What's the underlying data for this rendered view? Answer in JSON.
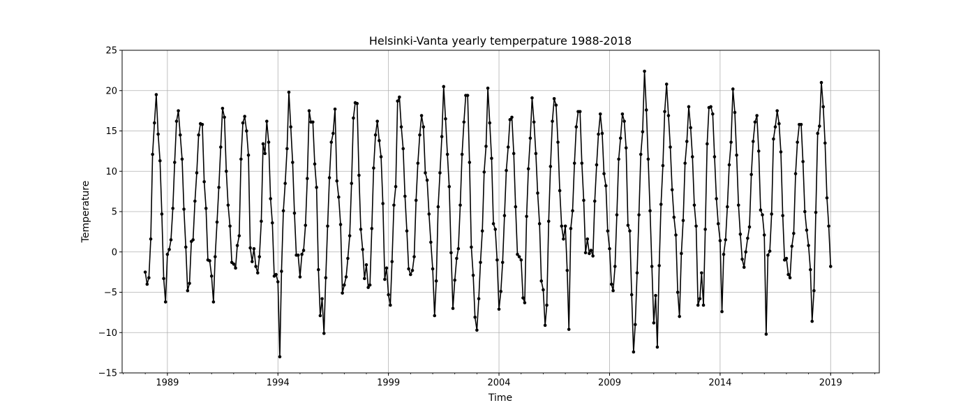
{
  "chart_data": {
    "type": "line",
    "title": "Helsinki-Vanta yearly temperpature 1988-2018",
    "xlabel": "Time",
    "ylabel": "Temperature",
    "xlim": [
      "1986-12-15",
      "2021-03-15"
    ],
    "ylim": [
      -15,
      25
    ],
    "x_ticks": [
      "1989",
      "1994",
      "1999",
      "2004",
      "2009",
      "2014",
      "2019"
    ],
    "y_ticks": [
      "−15",
      "−10",
      "−5",
      "0",
      "5",
      "10",
      "15",
      "20",
      "25"
    ],
    "grid": true,
    "legend": null,
    "color": "#000000",
    "marker": "circle",
    "x_start": "1988-01",
    "x_step": "month",
    "values": [
      -2.5,
      -4.0,
      -3.2,
      1.6,
      12.1,
      16.0,
      19.5,
      14.6,
      11.3,
      4.7,
      -3.3,
      -6.2,
      -0.3,
      0.3,
      1.5,
      5.4,
      11.1,
      16.2,
      17.5,
      14.5,
      11.5,
      5.3,
      0.6,
      -4.8,
      -3.9,
      1.3,
      1.5,
      6.3,
      9.8,
      14.5,
      15.9,
      15.8,
      8.7,
      5.4,
      -1.0,
      -1.1,
      -3.0,
      -6.2,
      -0.6,
      3.7,
      8.0,
      13.0,
      17.8,
      16.7,
      10.0,
      5.8,
      3.2,
      -1.3,
      -1.5,
      -2.0,
      0.8,
      2.0,
      11.5,
      16.0,
      16.8,
      15.0,
      12.0,
      0.5,
      -1.2,
      0.4,
      -1.8,
      -2.6,
      -0.6,
      3.8,
      13.4,
      12.2,
      16.2,
      13.6,
      6.6,
      3.6,
      -3.0,
      -2.8,
      -3.7,
      -13.0,
      -2.4,
      5.1,
      8.5,
      12.8,
      19.8,
      15.5,
      11.1,
      4.8,
      -0.4,
      -0.4,
      -3.1,
      -0.3,
      0.2,
      3.3,
      9.1,
      17.5,
      16.1,
      16.1,
      10.9,
      8.0,
      -2.2,
      -7.9,
      -5.8,
      -10.1,
      -3.2,
      3.2,
      9.2,
      13.6,
      14.7,
      17.7,
      8.8,
      6.8,
      3.4,
      -5.1,
      -4.1,
      -3.1,
      -0.8,
      2.0,
      8.5,
      16.6,
      18.5,
      18.4,
      9.5,
      2.8,
      0.3,
      -3.3,
      -1.6,
      -4.4,
      -4.1,
      2.9,
      10.4,
      14.5,
      16.2,
      13.8,
      11.8,
      6.0,
      -3.4,
      -2.0,
      -5.3,
      -6.6,
      -1.2,
      5.8,
      8.1,
      18.7,
      19.2,
      15.5,
      12.8,
      6.9,
      2.6,
      -2.1,
      -2.8,
      -2.3,
      -0.6,
      6.4,
      11.0,
      14.5,
      16.9,
      15.5,
      9.8,
      8.9,
      4.7,
      1.2,
      -2.1,
      -7.9,
      -3.6,
      5.6,
      9.8,
      14.3,
      20.5,
      16.5,
      12.1,
      8.1,
      -0.1,
      -7.0,
      -3.5,
      -0.8,
      0.4,
      5.8,
      12.1,
      16.1,
      19.4,
      19.4,
      11.1,
      0.6,
      -2.9,
      -8.1,
      -9.7,
      -5.8,
      -1.3,
      2.6,
      9.9,
      13.1,
      20.3,
      16.0,
      11.6,
      3.5,
      2.8,
      -1.0,
      -7.1,
      -4.9,
      -1.3,
      4.5,
      10.1,
      13.0,
      16.4,
      16.7,
      12.2,
      5.6,
      -0.3,
      -0.6,
      -1.0,
      -5.7,
      -6.3,
      4.4,
      10.3,
      14.1,
      19.1,
      16.1,
      12.2,
      7.3,
      3.5,
      -3.6,
      -4.7,
      -9.1,
      -6.6,
      3.8,
      10.6,
      16.2,
      19.0,
      18.2,
      13.6,
      7.6,
      3.2,
      1.6,
      3.2,
      -2.3,
      -9.6,
      2.9,
      5.1,
      11.0,
      15.5,
      17.4,
      17.4,
      11.0,
      6.4,
      -0.1,
      1.6,
      -0.2,
      0.2,
      -0.5,
      6.3,
      10.8,
      14.6,
      17.1,
      14.7,
      9.7,
      8.2,
      2.6,
      0.4,
      -4.0,
      -4.8,
      -1.8,
      4.6,
      11.5,
      14.1,
      17.1,
      16.2,
      12.9,
      3.3,
      2.6,
      -5.3,
      -12.4,
      -9.0,
      -2.6,
      4.6,
      12.1,
      14.9,
      22.4,
      17.6,
      11.5,
      5.1,
      -1.8,
      -8.8,
      -5.4,
      -11.8,
      -1.7,
      5.9,
      10.7,
      17.4,
      20.8,
      16.9,
      13.0,
      7.7,
      4.3,
      2.1,
      -5.0,
      -8.0,
      -0.2,
      3.9,
      11.0,
      13.7,
      18.0,
      15.4,
      11.8,
      5.8,
      3.2,
      -6.6,
      -5.8,
      -2.6,
      -6.6,
      2.8,
      13.4,
      17.9,
      18.0,
      17.1,
      11.8,
      6.6,
      3.5,
      1.4,
      -7.4,
      -0.3,
      1.5,
      5.6,
      10.8,
      13.6,
      20.2,
      17.3,
      12.0,
      5.8,
      2.2,
      -0.9,
      -1.9,
      0.0,
      1.7,
      3.1,
      9.6,
      13.7,
      16.1,
      16.9,
      12.5,
      5.2,
      4.6,
      2.1,
      -10.2,
      -0.4,
      0.1,
      4.7,
      14.0,
      15.5,
      17.5,
      15.9,
      12.4,
      4.5,
      -1.0,
      -0.8,
      -2.8,
      -3.2,
      0.7,
      2.3,
      9.7,
      13.6,
      15.8,
      15.8,
      11.2,
      5.0,
      2.7,
      0.8,
      -2.2,
      -8.6,
      -4.8,
      4.9,
      14.7,
      15.6,
      21.0,
      18.0,
      13.5,
      6.7,
      3.2,
      -1.8
    ]
  }
}
